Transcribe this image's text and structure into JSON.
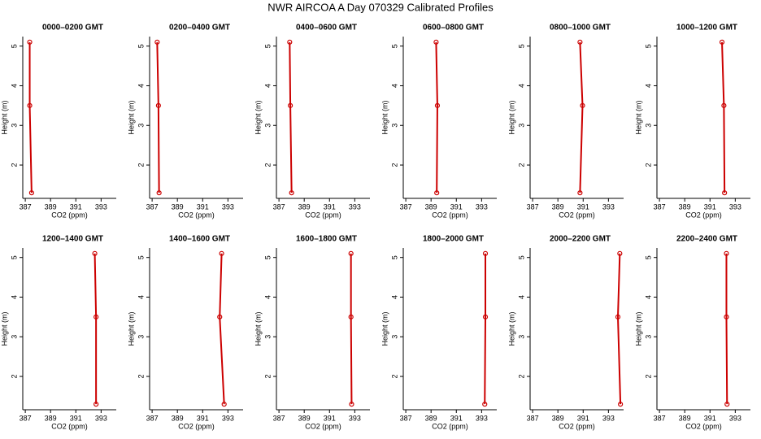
{
  "title": "NWR AIRCOA A  Day 070329  Calibrated Profiles",
  "chart_data": [
    {
      "type": "line",
      "title": "0000–0200 GMT",
      "x_label": "CO2 (ppm)",
      "y_label": "Height (m)",
      "color": "#cc0000",
      "x": [
        387.35,
        387.35,
        387.5
      ],
      "values": [
        5.1,
        3.5,
        1.3
      ],
      "xlim": [
        386.8,
        394.2
      ],
      "ylim": [
        1.16,
        5.24
      ],
      "xticks": [
        387,
        389,
        391,
        393
      ],
      "yticks": [
        2,
        3,
        4,
        5
      ]
    },
    {
      "type": "line",
      "title": "0200–0400 GMT",
      "x_label": "CO2 (ppm)",
      "y_label": "Height (m)",
      "color": "#cc0000",
      "x": [
        387.4,
        387.5,
        387.55
      ],
      "values": [
        5.1,
        3.5,
        1.3
      ],
      "xlim": [
        386.8,
        394.2
      ],
      "ylim": [
        1.16,
        5.24
      ],
      "xticks": [
        387,
        389,
        391,
        393
      ],
      "yticks": [
        2,
        3,
        4,
        5
      ]
    },
    {
      "type": "line",
      "title": "0400–0600 GMT",
      "x_label": "CO2 (ppm)",
      "y_label": "Height (m)",
      "color": "#cc0000",
      "x": [
        387.85,
        387.9,
        388.0
      ],
      "values": [
        5.1,
        3.5,
        1.3
      ],
      "xlim": [
        386.8,
        394.2
      ],
      "ylim": [
        1.16,
        5.24
      ],
      "xticks": [
        387,
        389,
        391,
        393
      ],
      "yticks": [
        2,
        3,
        4,
        5
      ]
    },
    {
      "type": "line",
      "title": "0600–0800 GMT",
      "x_label": "CO2 (ppm)",
      "y_label": "Height (m)",
      "color": "#cc0000",
      "x": [
        389.4,
        389.5,
        389.45
      ],
      "values": [
        5.1,
        3.5,
        1.3
      ],
      "xlim": [
        386.8,
        394.2
      ],
      "ylim": [
        1.16,
        5.24
      ],
      "xticks": [
        387,
        389,
        391,
        393
      ],
      "yticks": [
        2,
        3,
        4,
        5
      ]
    },
    {
      "type": "line",
      "title": "0800–1000 GMT",
      "x_label": "CO2 (ppm)",
      "y_label": "Height (m)",
      "color": "#cc0000",
      "x": [
        390.75,
        390.95,
        390.75
      ],
      "values": [
        5.1,
        3.5,
        1.3
      ],
      "xlim": [
        386.8,
        394.2
      ],
      "ylim": [
        1.16,
        5.24
      ],
      "xticks": [
        387,
        389,
        391,
        393
      ],
      "yticks": [
        2,
        3,
        4,
        5
      ]
    },
    {
      "type": "line",
      "title": "1000–1200 GMT",
      "x_label": "CO2 (ppm)",
      "y_label": "Height (m)",
      "color": "#cc0000",
      "x": [
        391.95,
        392.1,
        392.15
      ],
      "values": [
        5.1,
        3.5,
        1.3
      ],
      "xlim": [
        386.8,
        394.2
      ],
      "ylim": [
        1.16,
        5.24
      ],
      "xticks": [
        387,
        389,
        391,
        393
      ],
      "yticks": [
        2,
        3,
        4,
        5
      ]
    },
    {
      "type": "line",
      "title": "1200–1400 GMT",
      "x_label": "CO2 (ppm)",
      "y_label": "Height (m)",
      "color": "#cc0000",
      "x": [
        392.5,
        392.6,
        392.6
      ],
      "values": [
        5.1,
        3.5,
        1.3
      ],
      "xlim": [
        386.8,
        394.2
      ],
      "ylim": [
        1.16,
        5.24
      ],
      "xticks": [
        387,
        389,
        391,
        393
      ],
      "yticks": [
        2,
        3,
        4,
        5
      ]
    },
    {
      "type": "line",
      "title": "1400–1600 GMT",
      "x_label": "CO2 (ppm)",
      "y_label": "Height (m)",
      "color": "#cc0000",
      "x": [
        392.5,
        392.35,
        392.7
      ],
      "values": [
        5.1,
        3.5,
        1.3
      ],
      "xlim": [
        386.8,
        394.2
      ],
      "ylim": [
        1.16,
        5.24
      ],
      "xticks": [
        387,
        389,
        391,
        393
      ],
      "yticks": [
        2,
        3,
        4,
        5
      ]
    },
    {
      "type": "line",
      "title": "1600–1800 GMT",
      "x_label": "CO2 (ppm)",
      "y_label": "Height (m)",
      "color": "#cc0000",
      "x": [
        392.7,
        392.7,
        392.75
      ],
      "values": [
        5.1,
        3.5,
        1.3
      ],
      "xlim": [
        386.8,
        394.2
      ],
      "ylim": [
        1.16,
        5.24
      ],
      "xticks": [
        387,
        389,
        391,
        393
      ],
      "yticks": [
        2,
        3,
        4,
        5
      ]
    },
    {
      "type": "line",
      "title": "1800–2000 GMT",
      "x_label": "CO2 (ppm)",
      "y_label": "Height (m)",
      "color": "#cc0000",
      "x": [
        393.3,
        393.3,
        393.25
      ],
      "values": [
        5.1,
        3.5,
        1.3
      ],
      "xlim": [
        386.8,
        394.2
      ],
      "ylim": [
        1.16,
        5.24
      ],
      "xticks": [
        387,
        389,
        391,
        393
      ],
      "yticks": [
        2,
        3,
        4,
        5
      ]
    },
    {
      "type": "line",
      "title": "2000–2200 GMT",
      "x_label": "CO2 (ppm)",
      "y_label": "Height (m)",
      "color": "#cc0000",
      "x": [
        393.9,
        393.75,
        393.95
      ],
      "values": [
        5.1,
        3.5,
        1.3
      ],
      "xlim": [
        386.8,
        394.2
      ],
      "ylim": [
        1.16,
        5.24
      ],
      "xticks": [
        387,
        389,
        391,
        393
      ],
      "yticks": [
        2,
        3,
        4,
        5
      ]
    },
    {
      "type": "line",
      "title": "2200–2400 GMT",
      "x_label": "CO2 (ppm)",
      "y_label": "Height (m)",
      "color": "#cc0000",
      "x": [
        392.3,
        392.3,
        392.35
      ],
      "values": [
        5.1,
        3.5,
        1.3
      ],
      "xlim": [
        386.8,
        394.2
      ],
      "ylim": [
        1.16,
        5.24
      ],
      "xticks": [
        387,
        389,
        391,
        393
      ],
      "yticks": [
        2,
        3,
        4,
        5
      ]
    }
  ]
}
